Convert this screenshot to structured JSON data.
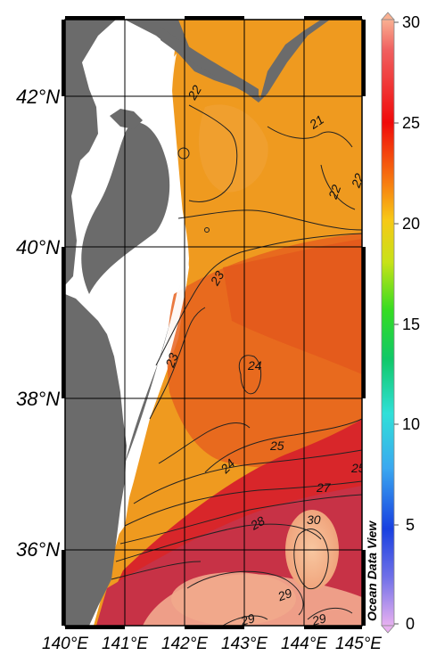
{
  "map": {
    "lat_labels": [
      "42°N",
      "40°N",
      "38°N",
      "36°N"
    ],
    "lon_labels": [
      "140°E",
      "141°E",
      "142°E",
      "143°E",
      "144°E",
      "145°E"
    ],
    "lon_range": [
      140,
      145
    ],
    "lat_range": [
      35,
      43
    ],
    "contour_labels": [
      "22",
      "21",
      "22",
      "22",
      "23",
      "23",
      "24",
      "24",
      "25",
      "25",
      "27",
      "28",
      "30",
      "29",
      "29",
      "29"
    ],
    "watermark": "Ocean Data View",
    "colors": {
      "land": "#6b6b6b",
      "gap": "#ffffff",
      "orange": "#ef9a1f",
      "red_orange": "#e65a1c",
      "red": "#d8262a",
      "crimson": "#c63348",
      "peach": "#f5b48c"
    }
  },
  "colorbar": {
    "ticks": [
      "30",
      "25",
      "20",
      "15",
      "10",
      "5",
      "0"
    ],
    "tick_values": [
      30,
      25,
      20,
      15,
      10,
      5,
      0
    ],
    "range": [
      0,
      30
    ]
  }
}
